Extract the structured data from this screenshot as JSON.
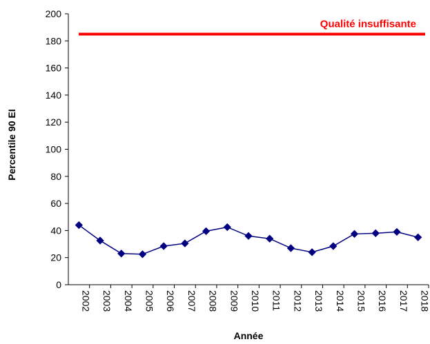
{
  "chart_data": {
    "type": "line",
    "categories": [
      "2002",
      "2003",
      "2004",
      "2005",
      "2006",
      "2007",
      "2008",
      "2009",
      "2010",
      "2011",
      "2012",
      "2013",
      "2014",
      "2015",
      "2016",
      "2017",
      "2018"
    ],
    "series": [
      {
        "name": "Percentile 90 EI",
        "color": "#000080",
        "values": [
          44,
          32.6,
          23,
          22.5,
          28.5,
          30.5,
          39.5,
          42.5,
          36,
          34,
          27,
          24,
          28.5,
          37.5,
          38,
          39,
          35
        ]
      }
    ],
    "threshold": {
      "value": 185,
      "label": "Qualité insuffisante",
      "color": "#ff0000"
    },
    "xlabel": "Année",
    "ylabel": "Percentile 90 EI",
    "ylim": [
      0,
      200
    ],
    "yticks": [
      0,
      20,
      40,
      60,
      80,
      100,
      120,
      140,
      160,
      180,
      200
    ],
    "grid": false
  }
}
